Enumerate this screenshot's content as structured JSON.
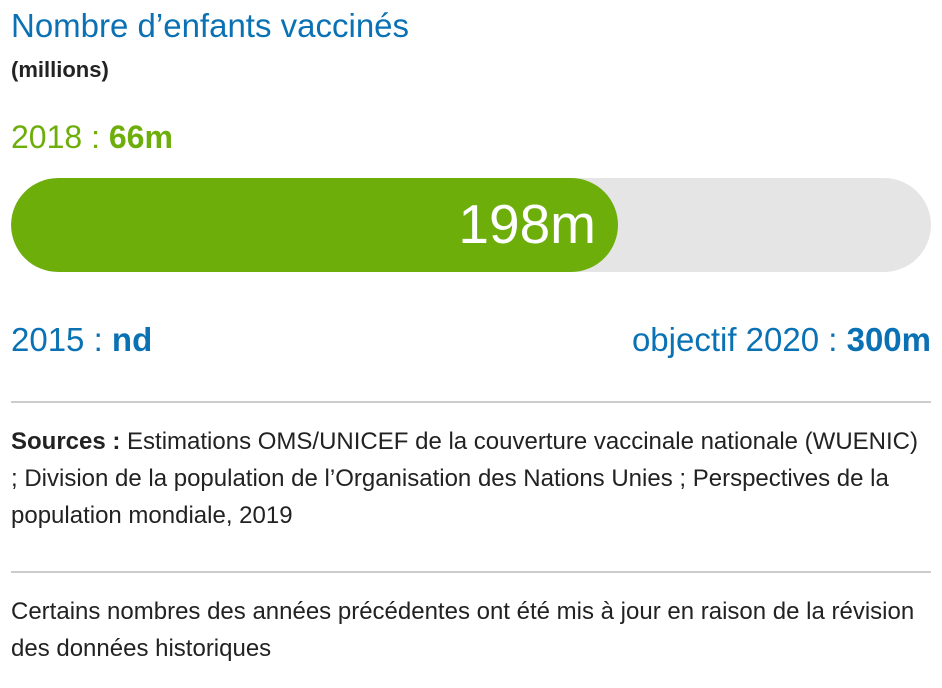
{
  "title": "Nombre d’enfants vaccinés",
  "subtitle": "(millions)",
  "chart_data": {
    "type": "bar",
    "orientation": "horizontal",
    "title": "Nombre d’enfants vaccinés",
    "unit_label": "(millions)",
    "current": {
      "value": 198,
      "label": "198m"
    },
    "target": {
      "value": 300,
      "label": "300m",
      "prefix": "objectif 2020 :"
    },
    "year_2018": {
      "prefix": "2018 :",
      "value": 66,
      "label": "66m"
    },
    "year_2015": {
      "prefix": "2015 :",
      "label": "nd"
    },
    "xlim": [
      0,
      300
    ],
    "colors": {
      "fill": "#6eae0b",
      "track": "#e5e5e5",
      "primary_text": "#0a72b4",
      "year_text": "#6eae0b"
    }
  },
  "sources": {
    "label": "Sources :",
    "text": " Estimations OMS/UNICEF de la couverture vaccinale nationale (WUENIC) ; Division de la population de l’Organisation des Nations Unies ; Perspectives de la population mondiale, 2019"
  },
  "note": "Certains nombres des années précédentes ont été mis à jour en raison de la révision des données historiques"
}
